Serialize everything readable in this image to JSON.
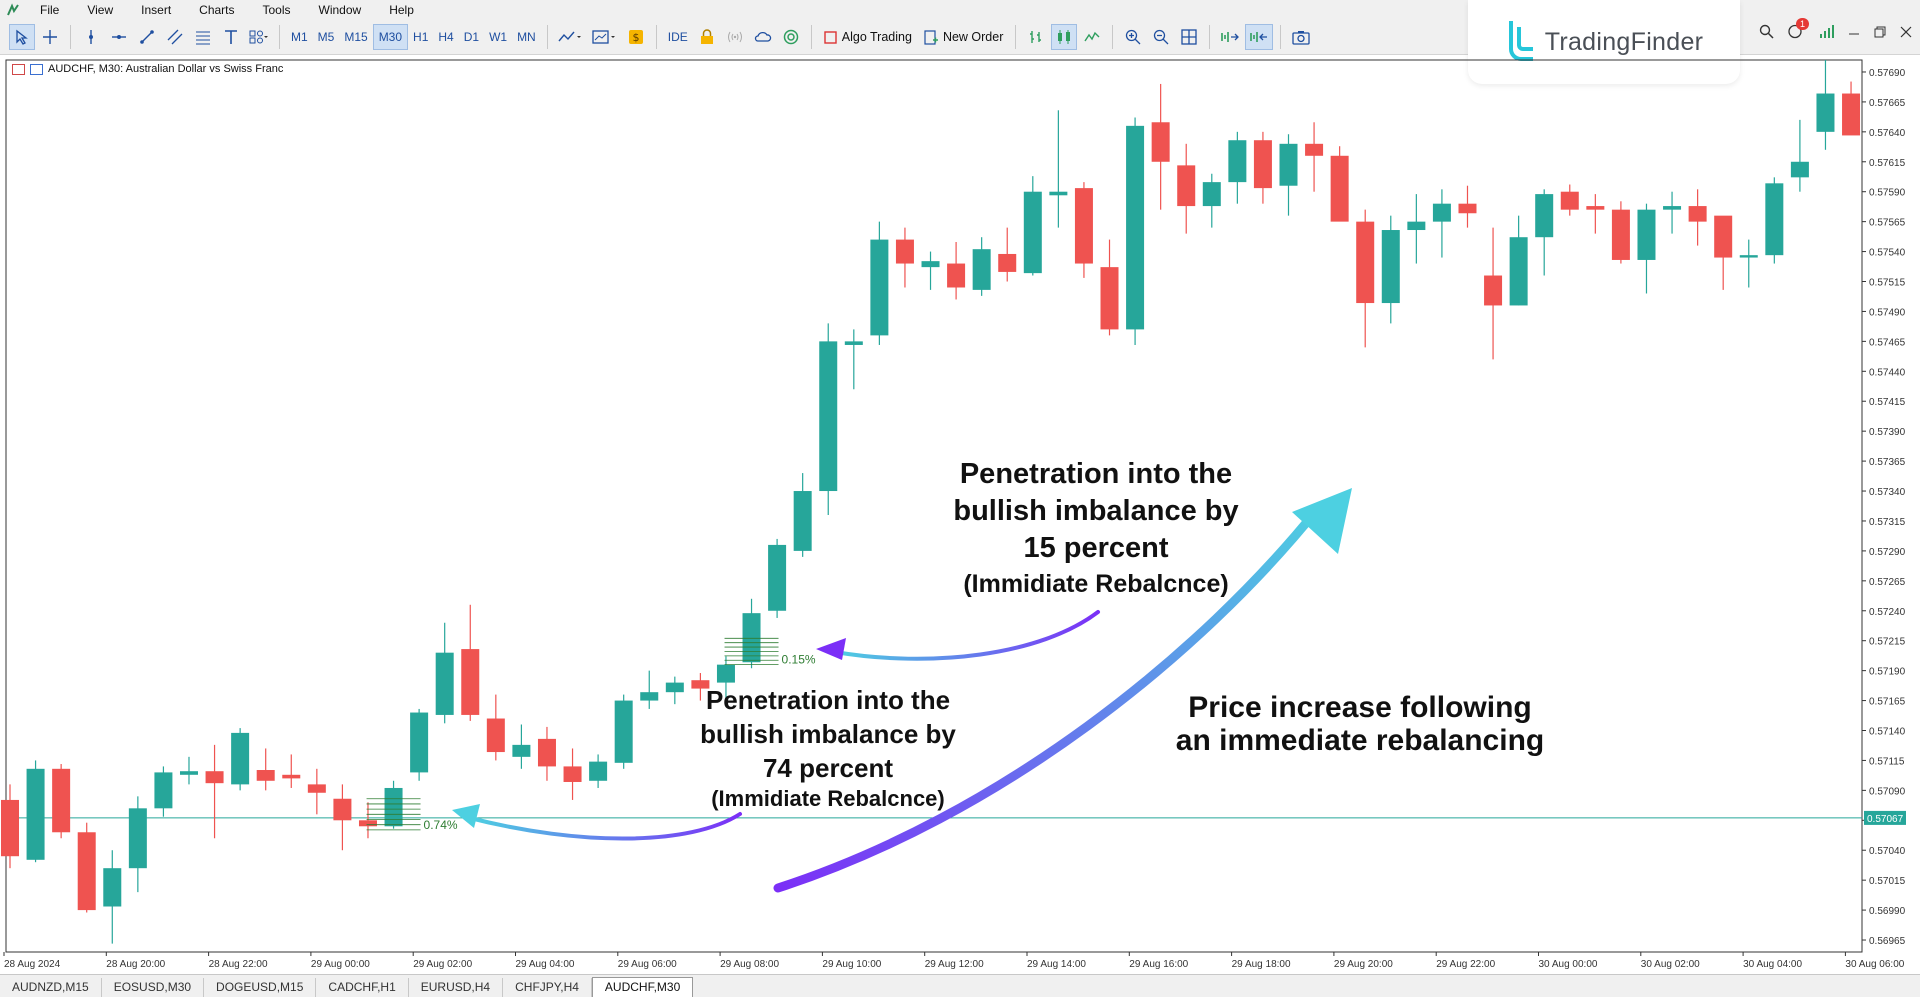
{
  "menu": {
    "items": [
      "File",
      "View",
      "Insert",
      "Charts",
      "Tools",
      "Window",
      "Help"
    ]
  },
  "toolbar": {
    "timeframes": [
      "M1",
      "M5",
      "M15",
      "M30",
      "H1",
      "H4",
      "D1",
      "W1",
      "MN"
    ],
    "active_timeframe": "M30",
    "ide_label": "IDE",
    "algo_trading_label": "Algo Trading",
    "new_order_label": "New Order"
  },
  "logo": {
    "text": "TradingFinder"
  },
  "notifications": {
    "count": "1"
  },
  "chart": {
    "caption": "AUDCHF, M30:  Australian Dollar vs Swiss Franc",
    "current_price_label": "0.57067"
  },
  "chart_data": {
    "type": "candlestick",
    "symbol": "AUDCHF",
    "timeframe": "M30",
    "y_ticks": [
      "0.57690",
      "0.57665",
      "0.57640",
      "0.57615",
      "0.57590",
      "0.57565",
      "0.57540",
      "0.57515",
      "0.57490",
      "0.57465",
      "0.57440",
      "0.57415",
      "0.57390",
      "0.57365",
      "0.57340",
      "0.57315",
      "0.57290",
      "0.57265",
      "0.57240",
      "0.57215",
      "0.57190",
      "0.57165",
      "0.57140",
      "0.57115",
      "0.57090",
      "0.57065",
      "0.57040",
      "0.57015",
      "0.56990",
      "0.56965"
    ],
    "x_ticks": [
      "28 Aug 2024",
      "28 Aug 20:00",
      "28 Aug 22:00",
      "29 Aug 00:00",
      "29 Aug 02:00",
      "29 Aug 04:00",
      "29 Aug 06:00",
      "29 Aug 08:00",
      "29 Aug 10:00",
      "29 Aug 12:00",
      "29 Aug 14:00",
      "29 Aug 16:00",
      "29 Aug 18:00",
      "29 Aug 20:00",
      "29 Aug 22:00",
      "30 Aug 00:00",
      "30 Aug 02:00",
      "30 Aug 04:00",
      "30 Aug 06:00"
    ],
    "ylim": [
      0.56955,
      0.577
    ],
    "current_price": 0.57067,
    "up_color": "#26a69a",
    "down_color": "#ef5350",
    "candles": [
      [
        0.57082,
        0.57095,
        0.57025,
        0.57035
      ],
      [
        0.57032,
        0.57115,
        0.5703,
        0.57108
      ],
      [
        0.57108,
        0.57112,
        0.5705,
        0.57055
      ],
      [
        0.57055,
        0.57063,
        0.56988,
        0.5699
      ],
      [
        0.56993,
        0.5704,
        0.56962,
        0.57025
      ],
      [
        0.57025,
        0.57085,
        0.57005,
        0.57075
      ],
      [
        0.57075,
        0.5711,
        0.57068,
        0.57105
      ],
      [
        0.57103,
        0.57118,
        0.57095,
        0.57106
      ],
      [
        0.57106,
        0.57128,
        0.5705,
        0.57096
      ],
      [
        0.57095,
        0.57142,
        0.5709,
        0.57138
      ],
      [
        0.57107,
        0.57125,
        0.5709,
        0.57098
      ],
      [
        0.57103,
        0.5712,
        0.57092,
        0.571
      ],
      [
        0.57095,
        0.57108,
        0.5707,
        0.57088
      ],
      [
        0.57083,
        0.57095,
        0.5704,
        0.57065
      ],
      [
        0.57065,
        0.5708,
        0.5705,
        0.5706
      ],
      [
        0.5706,
        0.57098,
        0.57058,
        0.57092
      ],
      [
        0.57105,
        0.57158,
        0.57098,
        0.57155
      ],
      [
        0.57153,
        0.5723,
        0.57146,
        0.57205
      ],
      [
        0.57208,
        0.57245,
        0.57148,
        0.57153
      ],
      [
        0.5715,
        0.5717,
        0.57115,
        0.57122
      ],
      [
        0.57118,
        0.57145,
        0.57108,
        0.57128
      ],
      [
        0.57133,
        0.57143,
        0.57098,
        0.5711
      ],
      [
        0.5711,
        0.57125,
        0.57082,
        0.57097
      ],
      [
        0.57098,
        0.5712,
        0.57092,
        0.57114
      ],
      [
        0.57113,
        0.5717,
        0.57108,
        0.57165
      ],
      [
        0.57165,
        0.5719,
        0.57158,
        0.57172
      ],
      [
        0.57172,
        0.57185,
        0.57162,
        0.5718
      ],
      [
        0.57182,
        0.57188,
        0.57165,
        0.57175
      ],
      [
        0.5718,
        0.57202,
        0.57164,
        0.57195
      ],
      [
        0.57197,
        0.5725,
        0.57192,
        0.57238
      ],
      [
        0.5724,
        0.573,
        0.57234,
        0.57295
      ],
      [
        0.5729,
        0.57355,
        0.57285,
        0.5734
      ],
      [
        0.5734,
        0.5748,
        0.5732,
        0.57465
      ],
      [
        0.57462,
        0.57475,
        0.57425,
        0.57465
      ],
      [
        0.5747,
        0.57565,
        0.57462,
        0.5755
      ],
      [
        0.5755,
        0.5756,
        0.5751,
        0.5753
      ],
      [
        0.57527,
        0.5754,
        0.57508,
        0.57532
      ],
      [
        0.5753,
        0.57548,
        0.575,
        0.5751
      ],
      [
        0.57508,
        0.57552,
        0.57503,
        0.57542
      ],
      [
        0.57538,
        0.5756,
        0.57515,
        0.57523
      ],
      [
        0.57522,
        0.57603,
        0.5752,
        0.5759
      ],
      [
        0.57587,
        0.57658,
        0.5756,
        0.5759
      ],
      [
        0.57593,
        0.57598,
        0.57518,
        0.5753
      ],
      [
        0.57527,
        0.5755,
        0.5747,
        0.57475
      ],
      [
        0.57475,
        0.57652,
        0.57462,
        0.57645
      ],
      [
        0.57648,
        0.5768,
        0.57575,
        0.57615
      ],
      [
        0.57612,
        0.5763,
        0.57555,
        0.57578
      ],
      [
        0.57578,
        0.57605,
        0.5756,
        0.57598
      ],
      [
        0.57598,
        0.5764,
        0.5758,
        0.57633
      ],
      [
        0.57633,
        0.5764,
        0.5758,
        0.57593
      ],
      [
        0.57595,
        0.57638,
        0.5757,
        0.5763
      ],
      [
        0.5763,
        0.57648,
        0.5759,
        0.5762
      ],
      [
        0.5762,
        0.57628,
        0.5757,
        0.57565
      ],
      [
        0.57565,
        0.57575,
        0.5746,
        0.57497
      ],
      [
        0.57497,
        0.5757,
        0.5748,
        0.57558
      ],
      [
        0.57558,
        0.57588,
        0.5753,
        0.57565
      ],
      [
        0.57565,
        0.57592,
        0.57535,
        0.5758
      ],
      [
        0.5758,
        0.57595,
        0.5756,
        0.57572
      ],
      [
        0.5752,
        0.5756,
        0.5745,
        0.57495
      ],
      [
        0.57495,
        0.5757,
        0.57495,
        0.57552
      ],
      [
        0.57552,
        0.57592,
        0.5752,
        0.57588
      ],
      [
        0.5759,
        0.57596,
        0.5757,
        0.57575
      ],
      [
        0.57578,
        0.57588,
        0.57555,
        0.57575
      ],
      [
        0.57575,
        0.57582,
        0.5753,
        0.57533
      ],
      [
        0.57533,
        0.5758,
        0.57505,
        0.57575
      ],
      [
        0.57575,
        0.5759,
        0.57555,
        0.57578
      ],
      [
        0.57578,
        0.57592,
        0.57545,
        0.57565
      ],
      [
        0.5757,
        0.57568,
        0.57508,
        0.57535
      ],
      [
        0.57535,
        0.5755,
        0.5751,
        0.57537
      ],
      [
        0.57537,
        0.57602,
        0.5753,
        0.57597
      ],
      [
        0.57602,
        0.5765,
        0.5759,
        0.57615
      ],
      [
        0.5764,
        0.577,
        0.57625,
        0.57672
      ],
      [
        0.57672,
        0.57682,
        0.57642,
        0.57637
      ]
    ]
  },
  "markers": [
    {
      "label": "0.15%",
      "candle": 29,
      "top": 0.57217,
      "bottom": 0.57195
    },
    {
      "label": "0.74%",
      "candle": 15,
      "top": 0.57083,
      "bottom": 0.57057
    }
  ],
  "annotations": {
    "upper": {
      "line1": "Penetration into the",
      "line2": "bullish imbalance by",
      "line3": "15 percent",
      "line4": "(Immidiate Rebalcnce)"
    },
    "lower": {
      "line1": "Penetration into the",
      "line2": "bullish imbalance by",
      "line3": "74 percent",
      "line4": "(Immidiate Rebalcnce)"
    },
    "right": {
      "line1": "Price increase following",
      "line2": "an immediate rebalancing"
    }
  },
  "tabs": [
    "AUDNZD,M15",
    "EOSUSD,M30",
    "DOGEUSD,M15",
    "CADCHF,H1",
    "EURUSD,H4",
    "CHFJPY,H4",
    "AUDCHF,M30"
  ],
  "active_tab": "AUDCHF,M30"
}
